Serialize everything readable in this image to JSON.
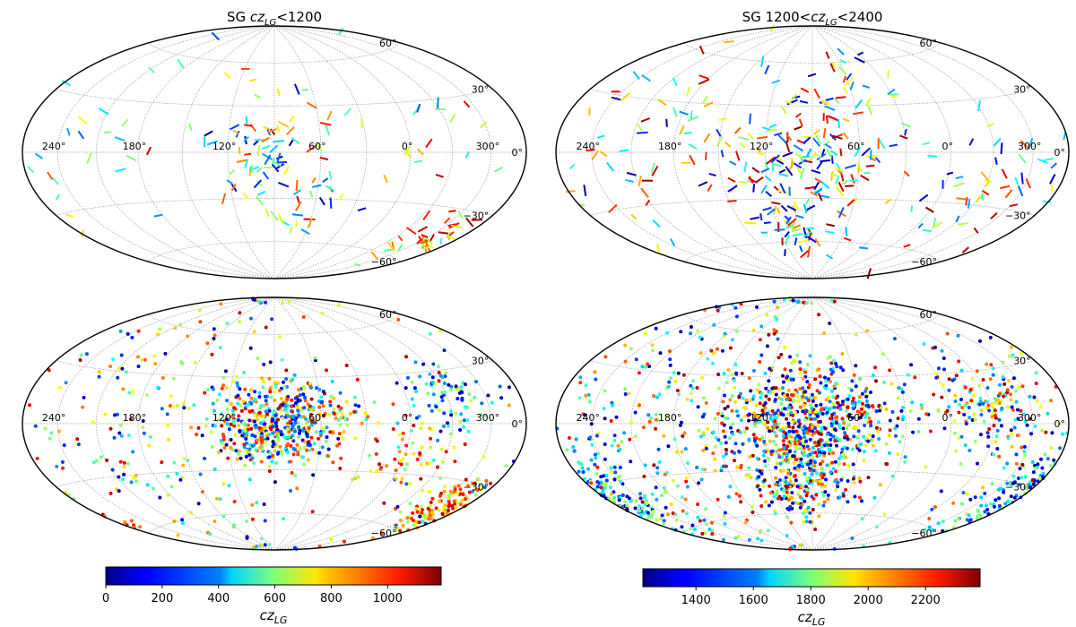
{
  "chart_data": [
    {
      "id": "top-left",
      "type": "scatter",
      "projection": "hammer-aitoff",
      "marker": "segment",
      "title_prefix": "SG ",
      "title_cz": "cz",
      "title_sub": "LG",
      "title_suffix": "<1200",
      "lon_tick_labels": [
        "240°",
        "180°",
        "120°",
        "60°",
        "0°",
        "300°"
      ],
      "lat_tick_labels": [
        "60°",
        "30°",
        "0°",
        "−30°",
        "−60°"
      ],
      "color_range": [
        0,
        1200
      ],
      "clusters": [
        {
          "lon": 300,
          "lat": -45,
          "spread": 14,
          "n": 40,
          "cz": [
            500,
            1150
          ]
        },
        {
          "lon": 90,
          "lat": 0,
          "spread": 28,
          "n": 80,
          "cz": [
            0,
            1150
          ]
        },
        {
          "lon": 70,
          "lat": -35,
          "spread": 18,
          "n": 20,
          "cz": [
            300,
            1100
          ]
        },
        {
          "lon": 190,
          "lat": 10,
          "spread": 50,
          "n": 25,
          "cz": [
            200,
            1150
          ]
        },
        {
          "lon": 330,
          "lat": 10,
          "spread": 25,
          "n": 15,
          "cz": [
            200,
            1150
          ]
        }
      ]
    },
    {
      "id": "top-right",
      "type": "scatter",
      "projection": "hammer-aitoff",
      "marker": "segment",
      "title_prefix": "SG 1200<",
      "title_cz": "cz",
      "title_sub": "LG",
      "title_suffix": "<2400",
      "lon_tick_labels": [
        "240°",
        "180°",
        "120°",
        "60°",
        "0°",
        "300°"
      ],
      "lat_tick_labels": [
        "60°",
        "30°",
        "0°",
        "−30°",
        "−60°"
      ],
      "color_range": [
        1200,
        2400
      ],
      "clusters": [
        {
          "lon": 90,
          "lat": 0,
          "spread": 35,
          "n": 160,
          "cz": [
            1200,
            2400
          ]
        },
        {
          "lon": 100,
          "lat": -45,
          "spread": 20,
          "n": 50,
          "cz": [
            1200,
            2400
          ]
        },
        {
          "lon": 200,
          "lat": 5,
          "spread": 45,
          "n": 60,
          "cz": [
            1200,
            2400
          ]
        },
        {
          "lon": 320,
          "lat": -20,
          "spread": 30,
          "n": 50,
          "cz": [
            1200,
            2400
          ]
        },
        {
          "lon": 60,
          "lat": 40,
          "spread": 25,
          "n": 30,
          "cz": [
            1200,
            2400
          ]
        }
      ]
    },
    {
      "id": "bottom-left",
      "type": "scatter",
      "projection": "hammer-aitoff",
      "marker": "dot",
      "lon_tick_labels": [
        "240°",
        "180°",
        "120°",
        "60°",
        "0°",
        "300°"
      ],
      "lat_tick_labels": [
        "60°",
        "30°",
        "0°",
        "−30°",
        "−60°"
      ],
      "color_range": [
        0,
        1200
      ],
      "clusters": [
        {
          "lon": 85,
          "lat": 0,
          "spread": 22,
          "n": 520,
          "cz": [
            0,
            1150
          ]
        },
        {
          "lon": 290,
          "lat": -45,
          "spread": 14,
          "n": 140,
          "cz": [
            600,
            1150
          ]
        },
        {
          "lon": 180,
          "lat": 0,
          "spread": 75,
          "n": 300,
          "cz": [
            0,
            1150
          ]
        },
        {
          "lon": 330,
          "lat": 15,
          "spread": 18,
          "n": 80,
          "cz": [
            0,
            700
          ]
        },
        {
          "lon": 0,
          "lat": -20,
          "spread": 20,
          "n": 60,
          "cz": [
            600,
            1150
          ]
        }
      ]
    },
    {
      "id": "bottom-right",
      "type": "scatter",
      "projection": "hammer-aitoff",
      "marker": "dot",
      "lon_tick_labels": [
        "240°",
        "180°",
        "120°",
        "60°",
        "0°",
        "300°"
      ],
      "lat_tick_labels": [
        "60°",
        "30°",
        "0°",
        "−30°",
        "−60°"
      ],
      "color_range": [
        1200,
        2400
      ],
      "clusters": [
        {
          "lon": 90,
          "lat": 0,
          "spread": 30,
          "n": 700,
          "cz": [
            1200,
            2400
          ]
        },
        {
          "lon": 100,
          "lat": -40,
          "spread": 20,
          "n": 160,
          "cz": [
            1200,
            2400
          ]
        },
        {
          "lon": 270,
          "lat": -35,
          "spread": 22,
          "n": 220,
          "cz": [
            1200,
            1900
          ]
        },
        {
          "lon": 190,
          "lat": 0,
          "spread": 70,
          "n": 450,
          "cz": [
            1200,
            2400
          ]
        },
        {
          "lon": 330,
          "lat": 10,
          "spread": 22,
          "n": 160,
          "cz": [
            1200,
            2400
          ]
        }
      ]
    }
  ],
  "colorbars": [
    {
      "id": "left",
      "tick_labels": [
        "0",
        "200",
        "400",
        "600",
        "800",
        "1000"
      ],
      "tick_values": [
        0,
        200,
        400,
        600,
        800,
        1000
      ],
      "range": [
        0,
        1190
      ],
      "label_cz": "cz",
      "label_sub": "LG"
    },
    {
      "id": "right",
      "tick_labels": [
        "1400",
        "1600",
        "1800",
        "2000",
        "2200"
      ],
      "tick_values": [
        1400,
        1600,
        1800,
        2000,
        2200
      ],
      "range": [
        1215,
        2390
      ],
      "label_cz": "cz",
      "label_sub": "LG"
    }
  ]
}
